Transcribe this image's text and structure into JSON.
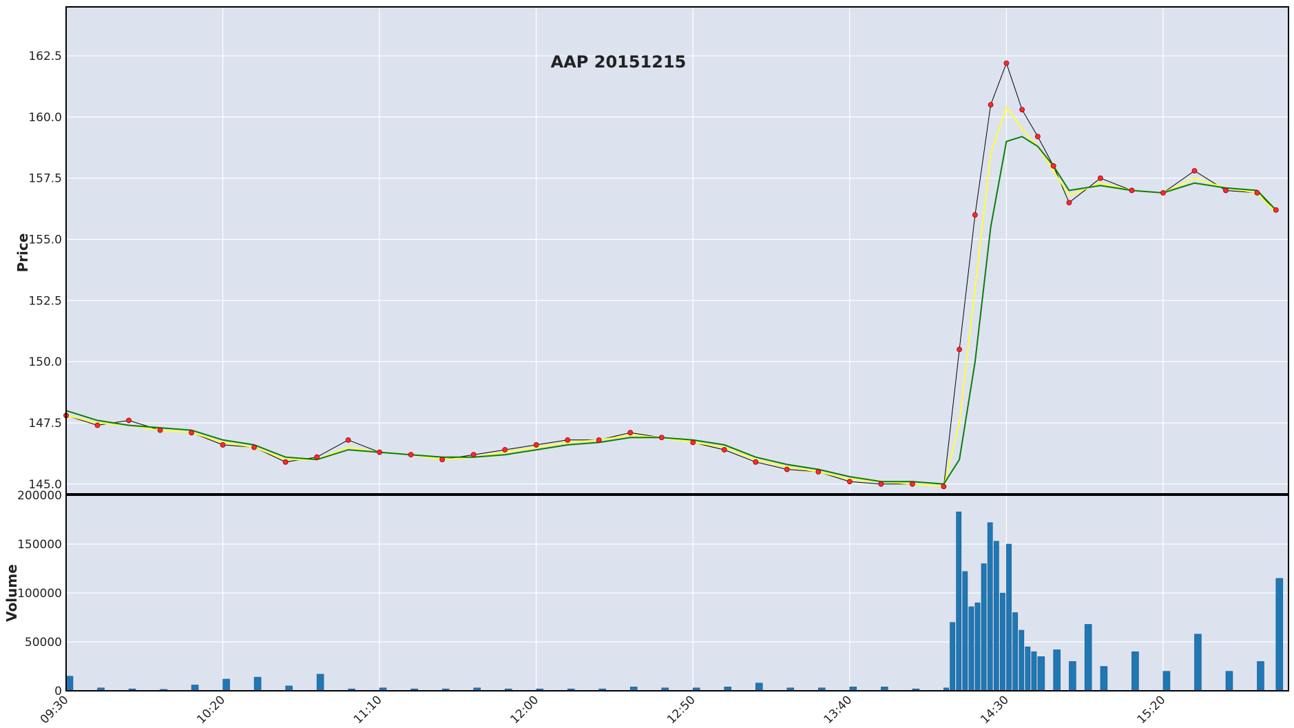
{
  "chart_data": {
    "type": "candlestick",
    "title": "AAP 20151215",
    "background": "#dde2ef",
    "grid": true,
    "price_panel": {
      "ylabel": "Price",
      "ylim": [
        144.6,
        164.5
      ],
      "yticks": [
        "145.0",
        "147.5",
        "150.0",
        "152.5",
        "155.0",
        "157.5",
        "160.0",
        "162.5"
      ],
      "series": [
        {
          "name": "price",
          "color": "#000000",
          "x": [
            "09:30",
            "09:40",
            "09:50",
            "10:00",
            "10:10",
            "10:20",
            "10:30",
            "10:40",
            "10:50",
            "11:00",
            "11:10",
            "11:20",
            "11:30",
            "11:40",
            "11:50",
            "12:00",
            "12:10",
            "12:20",
            "12:30",
            "12:40",
            "12:50",
            "13:00",
            "13:10",
            "13:20",
            "13:30",
            "13:40",
            "13:50",
            "14:00",
            "14:10",
            "14:15",
            "14:20",
            "14:25",
            "14:30",
            "14:35",
            "14:40",
            "14:45",
            "14:50",
            "15:00",
            "15:10",
            "15:20",
            "15:30",
            "15:40",
            "15:50",
            "15:56"
          ],
          "values": [
            147.8,
            147.4,
            147.6,
            147.2,
            147.1,
            146.6,
            146.5,
            145.9,
            146.1,
            146.8,
            146.3,
            146.2,
            146.0,
            146.2,
            146.4,
            146.6,
            146.8,
            146.8,
            147.1,
            146.9,
            146.7,
            146.4,
            145.9,
            145.6,
            145.5,
            145.1,
            145.0,
            145.0,
            144.9,
            150.5,
            156.0,
            160.5,
            162.2,
            160.3,
            159.2,
            158.0,
            156.5,
            157.5,
            157.0,
            156.9,
            157.8,
            157.0,
            156.9,
            156.2
          ]
        },
        {
          "name": "ma-short",
          "color": "#ffff33",
          "x": [
            "09:30",
            "09:40",
            "09:50",
            "10:00",
            "10:10",
            "10:20",
            "10:30",
            "10:40",
            "10:50",
            "11:00",
            "11:10",
            "11:20",
            "11:30",
            "11:40",
            "11:50",
            "12:00",
            "12:10",
            "12:20",
            "12:30",
            "12:40",
            "12:50",
            "13:00",
            "13:10",
            "13:20",
            "13:30",
            "13:40",
            "13:50",
            "14:00",
            "14:10",
            "14:15",
            "14:20",
            "14:25",
            "14:30",
            "14:35",
            "14:40",
            "14:45",
            "14:50",
            "15:00",
            "15:10",
            "15:20",
            "15:30",
            "15:40",
            "15:50",
            "15:56"
          ],
          "values": [
            147.8,
            147.5,
            147.4,
            147.2,
            147.1,
            146.7,
            146.5,
            146.0,
            146.0,
            146.5,
            146.3,
            146.2,
            146.0,
            146.1,
            146.3,
            146.5,
            146.7,
            146.8,
            147.0,
            146.9,
            146.7,
            146.5,
            146.0,
            145.7,
            145.5,
            145.2,
            145.1,
            145.0,
            144.9,
            147.5,
            153.0,
            158.5,
            160.4,
            159.5,
            158.8,
            157.8,
            156.8,
            157.3,
            157.0,
            156.9,
            157.5,
            157.1,
            156.9,
            156.1
          ]
        },
        {
          "name": "ma-long",
          "color": "#0a7d0a",
          "x": [
            "09:30",
            "09:40",
            "09:50",
            "10:00",
            "10:10",
            "10:20",
            "10:30",
            "10:40",
            "10:50",
            "11:00",
            "11:10",
            "11:20",
            "11:30",
            "11:40",
            "11:50",
            "12:00",
            "12:10",
            "12:20",
            "12:30",
            "12:40",
            "12:50",
            "13:00",
            "13:10",
            "13:20",
            "13:30",
            "13:40",
            "13:50",
            "14:00",
            "14:10",
            "14:15",
            "14:20",
            "14:25",
            "14:30",
            "14:35",
            "14:40",
            "14:45",
            "14:50",
            "15:00",
            "15:10",
            "15:20",
            "15:30",
            "15:40",
            "15:50",
            "15:56"
          ],
          "values": [
            148.0,
            147.6,
            147.4,
            147.3,
            147.2,
            146.8,
            146.6,
            146.1,
            146.0,
            146.4,
            146.3,
            146.2,
            146.1,
            146.1,
            146.2,
            146.4,
            146.6,
            146.7,
            146.9,
            146.9,
            146.8,
            146.6,
            146.1,
            145.8,
            145.6,
            145.3,
            145.1,
            145.1,
            145.0,
            146.0,
            150.0,
            155.5,
            159.0,
            159.2,
            158.8,
            158.0,
            157.0,
            157.2,
            157.0,
            156.9,
            157.3,
            157.1,
            157.0,
            156.2
          ]
        }
      ]
    },
    "volume_panel": {
      "ylabel": "Volume",
      "ylim": [
        0,
        200000
      ],
      "yticks": [
        "0",
        "50000",
        "100000",
        "150000",
        "200000"
      ],
      "color": "#1f77b4",
      "x": [
        "09:30",
        "09:40",
        "09:50",
        "10:00",
        "10:10",
        "10:20",
        "10:30",
        "10:40",
        "10:50",
        "11:00",
        "11:10",
        "11:20",
        "11:30",
        "11:40",
        "11:50",
        "12:00",
        "12:10",
        "12:20",
        "12:30",
        "12:40",
        "12:50",
        "13:00",
        "13:10",
        "13:20",
        "13:30",
        "13:40",
        "13:50",
        "14:00",
        "14:10",
        "14:12",
        "14:14",
        "14:16",
        "14:18",
        "14:20",
        "14:22",
        "14:24",
        "14:26",
        "14:28",
        "14:30",
        "14:32",
        "14:34",
        "14:36",
        "14:38",
        "14:40",
        "14:45",
        "14:50",
        "14:55",
        "15:00",
        "15:10",
        "15:20",
        "15:30",
        "15:40",
        "15:50",
        "15:56"
      ],
      "values": [
        15000,
        3000,
        2000,
        1500,
        6000,
        12000,
        14000,
        5000,
        17000,
        2000,
        3000,
        2000,
        2000,
        3000,
        2000,
        2000,
        2000,
        2000,
        4000,
        3000,
        3000,
        4000,
        8000,
        3000,
        3000,
        4000,
        4000,
        2000,
        3000,
        70000,
        183000,
        122000,
        86000,
        90000,
        130000,
        172000,
        153000,
        100000,
        150000,
        80000,
        62000,
        45000,
        40000,
        35000,
        42000,
        30000,
        68000,
        25000,
        40000,
        20000,
        58000,
        20000,
        30000,
        115000
      ]
    },
    "xticks": [
      "09:30",
      "10:20",
      "11:10",
      "12:00",
      "12:50",
      "13:40",
      "14:30",
      "15:20"
    ]
  }
}
